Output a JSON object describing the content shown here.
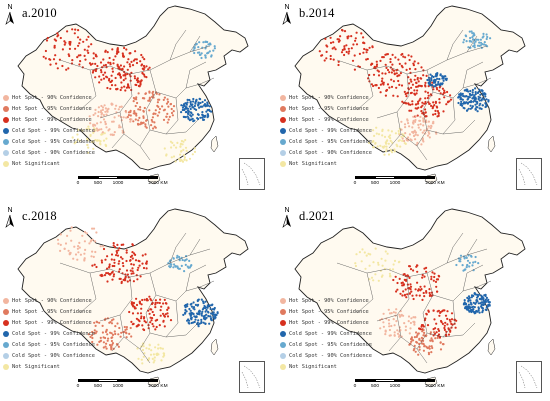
{
  "panels": [
    {
      "title": "a.2010"
    },
    {
      "title": "b.2014"
    },
    {
      "title": "c.2018"
    },
    {
      "title": "d.2021"
    }
  ],
  "north_label": "N",
  "legend": [
    {
      "label": "Hot Spot - 90% Confidence",
      "color": "#f2b6a0"
    },
    {
      "label": "Hot Spot - 95% Confidence",
      "color": "#e07a5f"
    },
    {
      "label": "Hot Spot - 99% Confidence",
      "color": "#d7301f"
    },
    {
      "label": "Cold Spot - 99% Confidence",
      "color": "#2166ac"
    },
    {
      "label": "Cold Spot - 95% Confidence",
      "color": "#67a9cf"
    },
    {
      "label": "Cold Spot - 90% Confidence",
      "color": "#b4cfe6"
    },
    {
      "label": "Not Significant",
      "color": "#f3e7a3"
    }
  ],
  "scalebar": {
    "ticks": [
      "0",
      "500",
      "1000",
      "2000 KM"
    ]
  },
  "colors": {
    "boundary": "#222222",
    "province": "#555555",
    "land": "#fffaf0"
  }
}
